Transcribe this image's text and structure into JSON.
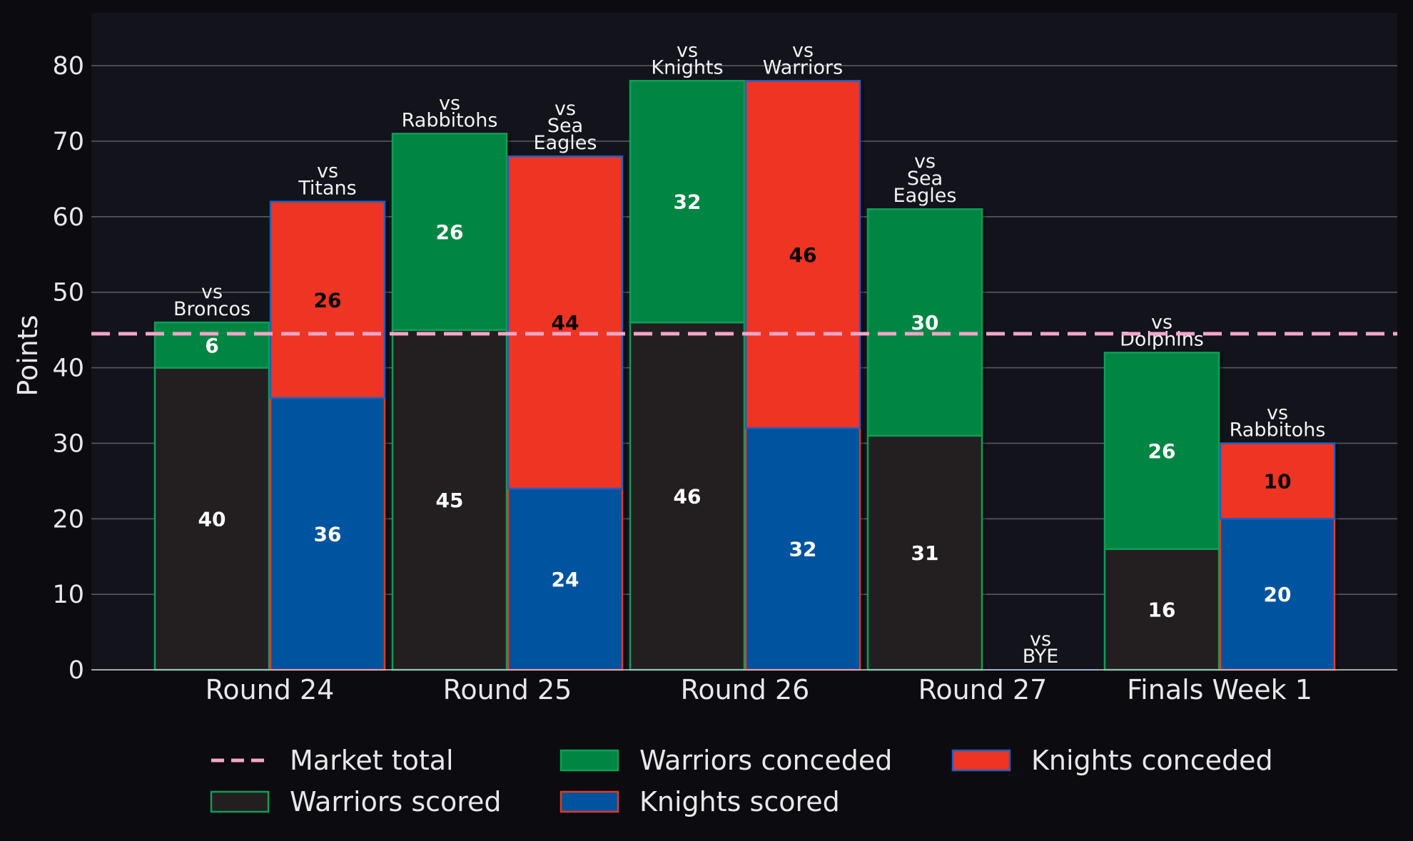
{
  "chart_data": {
    "type": "bar",
    "stacked": true,
    "grouped": true,
    "ylabel": "Points",
    "ylim": [
      0,
      87
    ],
    "yticks": [
      0,
      10,
      20,
      30,
      40,
      50,
      60,
      70,
      80
    ],
    "grid": true,
    "legend_position": "bottom",
    "categories": [
      "Round 24",
      "Round 25",
      "Round 26",
      "Round 27",
      "Finals Week 1"
    ],
    "teams": [
      {
        "name": "Warriors",
        "scored_label": "Warriors scored",
        "conceded_label": "Warriors conceded",
        "scored_color": "#231f20",
        "conceded_color": "#008542",
        "edge_color": "#0f9d58",
        "opponents": [
          [
            "vs",
            "Broncos"
          ],
          [
            "vs",
            "Rabbitohs"
          ],
          [
            "vs",
            "Knights"
          ],
          [
            "vs",
            "Sea",
            "Eagles"
          ],
          [
            "vs",
            "Dolphins"
          ]
        ],
        "scored": [
          40,
          45,
          46,
          31,
          16
        ],
        "conceded": [
          6,
          26,
          32,
          30,
          26
        ],
        "scored_text_color": "#ffffff",
        "conceded_text_color": "#ffffff"
      },
      {
        "name": "Knights",
        "scored_label": "Knights scored",
        "conceded_label": "Knights conceded",
        "scored_color": "#00539f",
        "conceded_color": "#ee3524",
        "edge_color": "#1f5fbf",
        "scored_edge_color": "#e03a2a",
        "opponents": [
          [
            "vs",
            "Titans"
          ],
          [
            "vs",
            "Sea",
            "Eagles"
          ],
          [
            "vs",
            "Warriors"
          ],
          [
            "vs",
            "BYE"
          ],
          [
            "vs",
            "Rabbitohs"
          ]
        ],
        "scored": [
          36,
          24,
          32,
          0,
          20
        ],
        "conceded": [
          26,
          44,
          46,
          0,
          10
        ],
        "scored_text_color": "#ffffff",
        "conceded_text_color": "#000000"
      }
    ],
    "reference_line": {
      "label": "Market total",
      "value": 44.5,
      "color": "#f4a6c8",
      "style": "dashed"
    },
    "legend_entries": [
      "Market total",
      "Warriors scored",
      "Warriors conceded",
      "Knights scored",
      "Knights conceded"
    ]
  },
  "colors": {
    "background": "#0b0b10",
    "plot_background": "#12131b",
    "grid": "#5a5a60",
    "text": "#e8e8ea"
  }
}
